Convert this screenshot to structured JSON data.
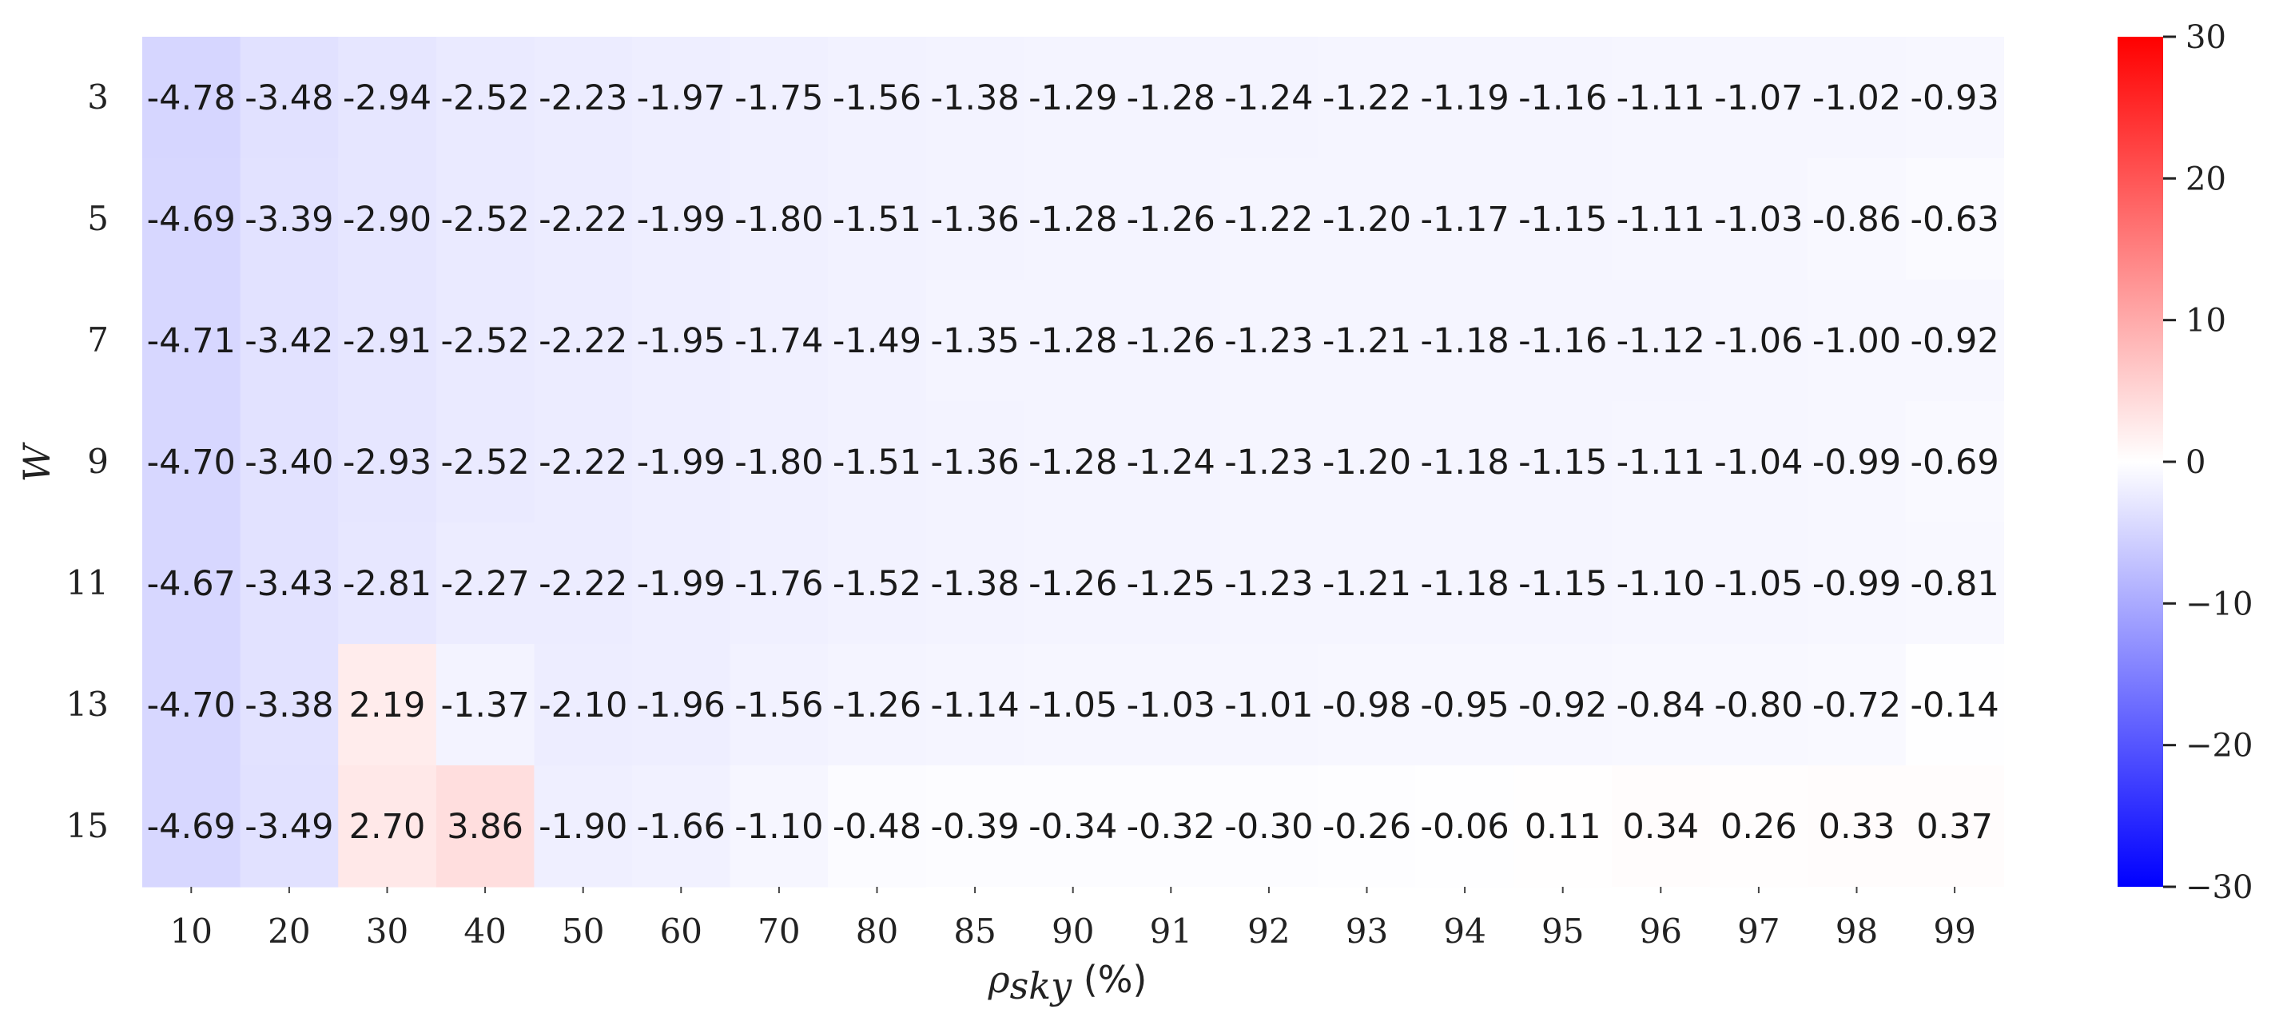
{
  "chart_data": {
    "type": "heatmap",
    "title": "",
    "xlabel": "ρ_sky (%)",
    "xlabel_parts": {
      "symbol": "ρ",
      "subscript": "sky",
      "unit": " (%)"
    },
    "ylabel": "W",
    "x_categories": [
      "10",
      "20",
      "30",
      "40",
      "50",
      "60",
      "70",
      "80",
      "85",
      "90",
      "91",
      "92",
      "93",
      "94",
      "95",
      "96",
      "97",
      "98",
      "99"
    ],
    "y_categories": [
      "3",
      "5",
      "7",
      "9",
      "11",
      "13",
      "15"
    ],
    "values": [
      [
        -4.78,
        -3.48,
        -2.94,
        -2.52,
        -2.23,
        -1.97,
        -1.75,
        -1.56,
        -1.38,
        -1.29,
        -1.28,
        -1.24,
        -1.22,
        -1.19,
        -1.16,
        -1.11,
        -1.07,
        -1.02,
        -0.93
      ],
      [
        -4.69,
        -3.39,
        -2.9,
        -2.52,
        -2.22,
        -1.99,
        -1.8,
        -1.51,
        -1.36,
        -1.28,
        -1.26,
        -1.22,
        -1.2,
        -1.17,
        -1.15,
        -1.11,
        -1.03,
        -0.86,
        -0.63
      ],
      [
        -4.71,
        -3.42,
        -2.91,
        -2.52,
        -2.22,
        -1.95,
        -1.74,
        -1.49,
        -1.35,
        -1.28,
        -1.26,
        -1.23,
        -1.21,
        -1.18,
        -1.16,
        -1.12,
        -1.06,
        -1.0,
        -0.92
      ],
      [
        -4.7,
        -3.4,
        -2.93,
        -2.52,
        -2.22,
        -1.99,
        -1.8,
        -1.51,
        -1.36,
        -1.28,
        -1.24,
        -1.23,
        -1.2,
        -1.18,
        -1.15,
        -1.11,
        -1.04,
        -0.99,
        -0.69
      ],
      [
        -4.67,
        -3.43,
        -2.81,
        -2.27,
        -2.22,
        -1.99,
        -1.76,
        -1.52,
        -1.38,
        -1.26,
        -1.25,
        -1.23,
        -1.21,
        -1.18,
        -1.15,
        -1.1,
        -1.05,
        -0.99,
        -0.81
      ],
      [
        -4.7,
        -3.38,
        2.19,
        -1.37,
        -2.1,
        -1.96,
        -1.56,
        -1.26,
        -1.14,
        -1.05,
        -1.03,
        -1.01,
        -0.98,
        -0.95,
        -0.92,
        -0.84,
        -0.8,
        -0.72,
        -0.14
      ],
      [
        -4.69,
        -3.49,
        2.7,
        3.86,
        -1.9,
        -1.66,
        -1.1,
        -0.48,
        -0.39,
        -0.34,
        -0.32,
        -0.3,
        -0.26,
        -0.06,
        0.11,
        0.34,
        0.26,
        0.33,
        0.37
      ]
    ],
    "value_format": "0.00",
    "colorbar": {
      "colormap": "bwr",
      "vmin": -30,
      "vmax": 30,
      "ticks": [
        30,
        20,
        10,
        0,
        -10,
        -20,
        -30
      ],
      "tick_labels": [
        "30",
        "20",
        "10",
        "0",
        "−10",
        "−20",
        "−30"
      ],
      "low_color": "#0000ff",
      "mid_color": "#ffffff",
      "high_color": "#ff0000"
    },
    "grid": false,
    "legend": "colorbar-right"
  }
}
